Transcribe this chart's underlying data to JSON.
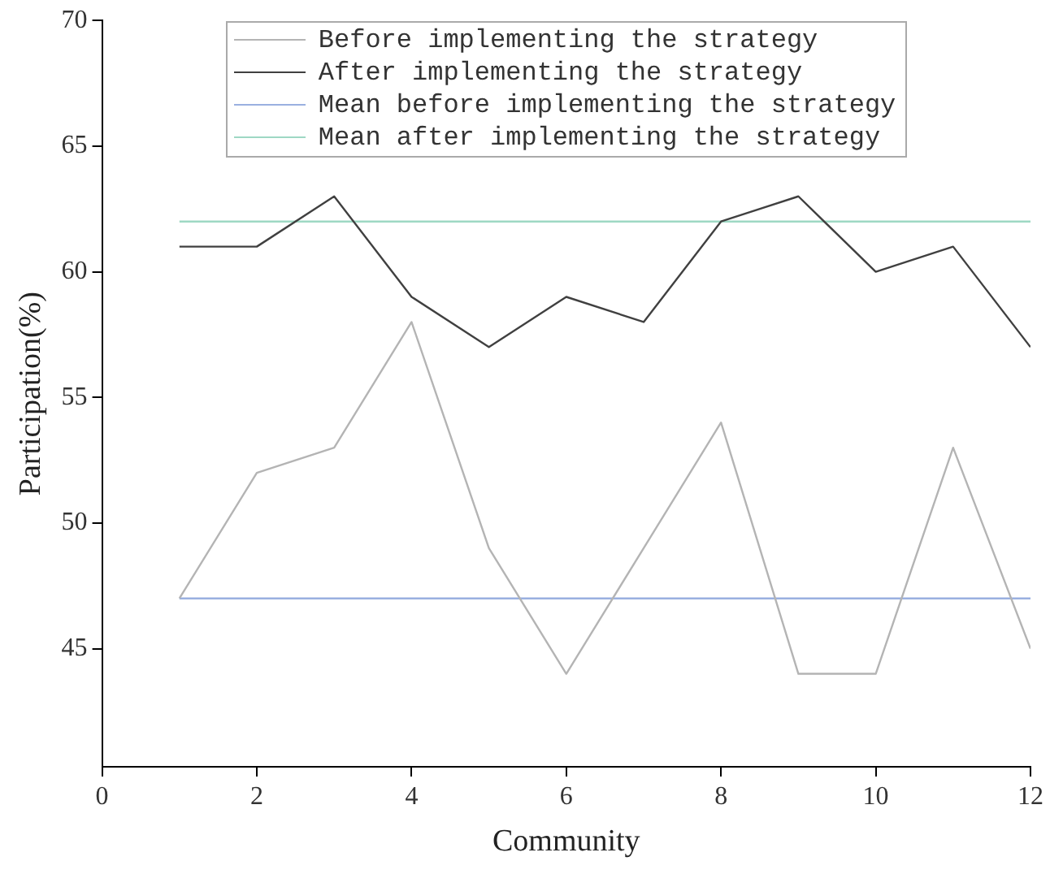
{
  "chart_data": {
    "type": "line",
    "xlabel": "Community",
    "ylabel": "Participation(%)",
    "x": [
      1,
      2,
      3,
      4,
      5,
      6,
      7,
      8,
      9,
      10,
      11,
      12
    ],
    "series": [
      {
        "name": "Before implementing the strategy",
        "color": "#b4b4b4",
        "values": [
          47,
          52,
          53,
          58,
          49,
          44,
          49,
          54,
          44,
          44,
          53,
          45
        ]
      },
      {
        "name": "After implementing the strategy",
        "color": "#404040",
        "values": [
          61,
          61,
          63,
          59,
          57,
          59,
          58,
          62,
          63,
          60,
          61,
          57
        ]
      },
      {
        "name": "Mean before implementing the strategy",
        "color": "#9ab0e0",
        "values": [
          47,
          47,
          47,
          47,
          47,
          47,
          47,
          47,
          47,
          47,
          47,
          47
        ]
      },
      {
        "name": "Mean after implementing the strategy",
        "color": "#9ed8c4",
        "values": [
          62,
          62,
          62,
          62,
          62,
          62,
          62,
          62,
          62,
          62,
          62,
          62
        ]
      }
    ],
    "xlim": [
      0,
      12
    ],
    "xticks": [
      0,
      2,
      4,
      6,
      8,
      10,
      12
    ],
    "ylim": [
      40.3,
      70
    ],
    "yticks": [
      45,
      50,
      55,
      60,
      65,
      70
    ],
    "grid": false,
    "legend": "top",
    "marker": "none",
    "line_style": "solid"
  }
}
